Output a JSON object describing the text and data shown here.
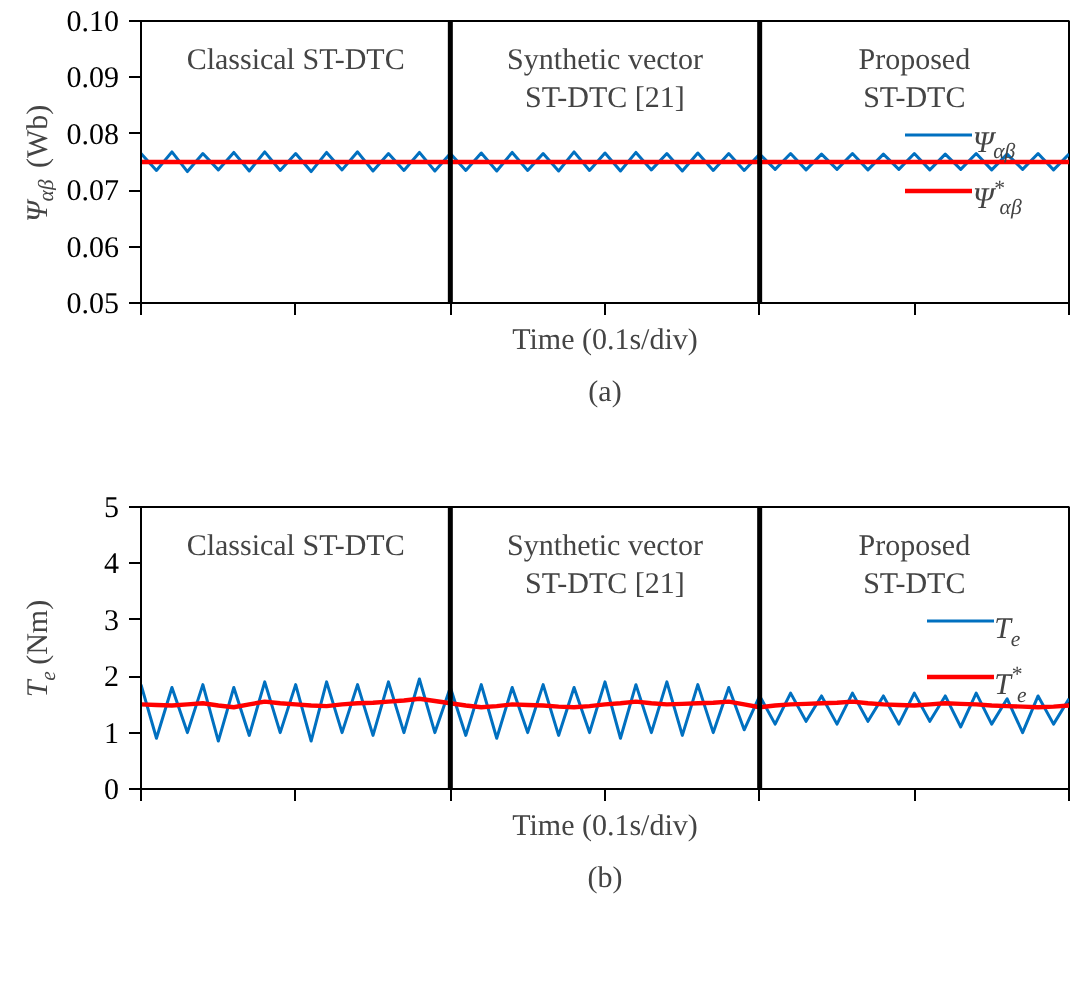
{
  "chart_data": [
    {
      "type": "line",
      "title": "(a)",
      "xlabel": "Time (0.1s/div)",
      "ylabel": "Ψ$_{αβ}$ (Wb)",
      "ylim": [
        0.05,
        0.1
      ],
      "categories": [
        null,
        null,
        null,
        null,
        null,
        null,
        null,
        null,
        null,
        null,
        null,
        null,
        null,
        null,
        null,
        null,
        null,
        null,
        null,
        null,
        null,
        null,
        null,
        null,
        null,
        null,
        null,
        null,
        null,
        null,
        null,
        null,
        null,
        null,
        null,
        null,
        null,
        null,
        null,
        null,
        null,
        null,
        null,
        null,
        null,
        null,
        null,
        null,
        null,
        null,
        null,
        null,
        null,
        null,
        null,
        null,
        null,
        null,
        null,
        null,
        null
      ],
      "yticks": [
        0.05,
        0.06,
        0.07,
        0.08,
        0.09,
        {
          "value": 0.1,
          "label": "0.10"
        }
      ],
      "grid": false,
      "legend": "right",
      "annotations": [
        "Classical ST-DTC",
        "Synthetic vector\nST-DTC [21]",
        "Proposed\nST-DTC"
      ],
      "series": [
        {
          "name": "Ψ$_{αβ}$",
          "color": "#0070c0",
          "values": [
            0.0765,
            0.0735,
            0.0768,
            0.0733,
            0.0765,
            0.0736,
            0.0767,
            0.0734,
            0.0768,
            0.0735,
            0.0765,
            0.0733,
            0.0767,
            0.0736,
            0.0768,
            0.0734,
            0.0765,
            0.0735,
            0.0767,
            0.0734,
            0.0765,
            0.0735,
            0.0766,
            0.0734,
            0.0767,
            0.0735,
            0.0765,
            0.0734,
            0.0768,
            0.0735,
            0.0766,
            0.0734,
            0.0767,
            0.0736,
            0.0765,
            0.0734,
            0.0766,
            0.0735,
            0.0765,
            0.0735,
            0.0764,
            0.0737,
            0.0765,
            0.0736,
            0.0764,
            0.0737,
            0.0765,
            0.0736,
            0.0764,
            0.0737,
            0.0765,
            0.0736,
            0.0764,
            0.0737,
            0.0765,
            0.0736,
            0.0764,
            0.0737,
            0.0765,
            0.0736,
            0.0764
          ]
        },
        {
          "name": "Ψ$^{*}$$_{αβ}$",
          "color": "#ff0000",
          "values": [
            0.075,
            0.075,
            0.075,
            0.075,
            0.075,
            0.075,
            0.075,
            0.075,
            0.075,
            0.075,
            0.075,
            0.075,
            0.075,
            0.075,
            0.075,
            0.075,
            0.075,
            0.075,
            0.075,
            0.075,
            0.075,
            0.075,
            0.075,
            0.075,
            0.075,
            0.075,
            0.075,
            0.075,
            0.075,
            0.075,
            0.075,
            0.075,
            0.075,
            0.075,
            0.075,
            0.075,
            0.075,
            0.075,
            0.075,
            0.075,
            0.075,
            0.075,
            0.075,
            0.075,
            0.075,
            0.075,
            0.075,
            0.075,
            0.075,
            0.075,
            0.075,
            0.075,
            0.075,
            0.075,
            0.075,
            0.075,
            0.075,
            0.075,
            0.075,
            0.075,
            0.075
          ]
        }
      ]
    },
    {
      "type": "line",
      "title": "(b)",
      "xlabel": "Time (0.1s/div)",
      "ylabel": "T$_{e}$ (Nm)",
      "ylim": [
        0,
        5
      ],
      "categories": [
        null,
        null,
        null,
        null,
        null,
        null,
        null,
        null,
        null,
        null,
        null,
        null,
        null,
        null,
        null,
        null,
        null,
        null,
        null,
        null,
        null,
        null,
        null,
        null,
        null,
        null,
        null,
        null,
        null,
        null,
        null,
        null,
        null,
        null,
        null,
        null,
        null,
        null,
        null,
        null,
        null,
        null,
        null,
        null,
        null,
        null,
        null,
        null,
        null,
        null,
        null,
        null,
        null,
        null,
        null,
        null,
        null,
        null,
        null,
        null,
        null
      ],
      "yticks": [
        0,
        1,
        2,
        3,
        4,
        5
      ],
      "grid": false,
      "legend": "right",
      "annotations": [
        "Classical ST-DTC",
        "Synthetic vector\nST-DTC [21]",
        "Proposed\nST-DTC"
      ],
      "series": [
        {
          "name": "T$_{e}$",
          "color": "#0070c0",
          "values": [
            1.85,
            0.9,
            1.8,
            1.0,
            1.85,
            0.85,
            1.8,
            0.95,
            1.9,
            1.0,
            1.85,
            0.85,
            1.9,
            1.0,
            1.85,
            0.95,
            1.9,
            1.0,
            1.95,
            1.0,
            1.8,
            0.95,
            1.85,
            0.9,
            1.8,
            1.0,
            1.85,
            0.95,
            1.8,
            1.0,
            1.9,
            0.9,
            1.85,
            1.0,
            1.9,
            0.95,
            1.85,
            1.0,
            1.8,
            1.05,
            1.65,
            1.15,
            1.7,
            1.2,
            1.65,
            1.15,
            1.7,
            1.2,
            1.65,
            1.15,
            1.7,
            1.2,
            1.65,
            1.1,
            1.7,
            1.15,
            1.6,
            1.0,
            1.65,
            1.15,
            1.6
          ]
        },
        {
          "name": "T$^{*}$$_{e}$",
          "color": "#ff0000",
          "values": [
            1.5,
            1.49,
            1.48,
            1.5,
            1.52,
            1.48,
            1.45,
            1.5,
            1.55,
            1.52,
            1.5,
            1.48,
            1.47,
            1.5,
            1.52,
            1.53,
            1.55,
            1.57,
            1.6,
            1.56,
            1.52,
            1.48,
            1.45,
            1.47,
            1.5,
            1.49,
            1.48,
            1.46,
            1.45,
            1.47,
            1.5,
            1.52,
            1.55,
            1.52,
            1.5,
            1.51,
            1.52,
            1.53,
            1.55,
            1.5,
            1.45,
            1.48,
            1.5,
            1.51,
            1.52,
            1.53,
            1.55,
            1.52,
            1.5,
            1.49,
            1.48,
            1.5,
            1.52,
            1.51,
            1.5,
            1.48,
            1.47,
            1.46,
            1.45,
            1.46,
            1.48
          ]
        }
      ]
    }
  ]
}
